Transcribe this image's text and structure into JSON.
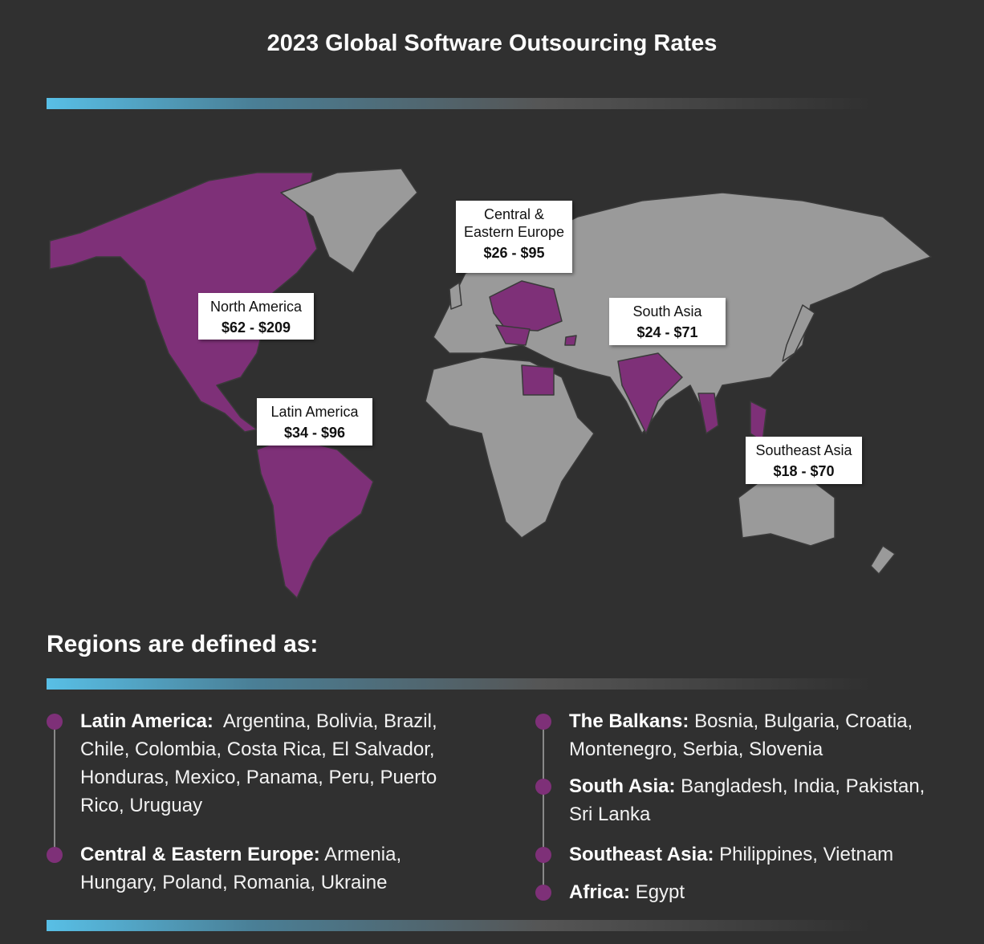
{
  "title": "2023 Global Software Outsourcing Rates",
  "map": {
    "callouts": [
      {
        "region": "Central & Eastern Europe",
        "rate": "$26 - $95"
      },
      {
        "region": "North America",
        "rate": "$62 - $209"
      },
      {
        "region": "South Asia",
        "rate": "$24 - $71"
      },
      {
        "region": "Latin America",
        "rate": "$34 - $96"
      },
      {
        "region": "Southeast Asia",
        "rate": "$18 - $70"
      }
    ]
  },
  "regions": {
    "heading": "Regions are defined as:",
    "items": [
      {
        "name": "Latin America:",
        "countries": "Argentina, Bolivia, Brazil, Chile, Colombia, Costa Rica, El Salvador, Honduras, Mexico, Panama, Peru, Puerto Rico, Uruguay"
      },
      {
        "name": "Central & Eastern Europe:",
        "countries": "Armenia, Hungary, Poland, Romania, Ukraine"
      },
      {
        "name": "The Balkans:",
        "countries": "Bosnia, Bulgaria, Croatia, Montenegro, Serbia, Slovenia"
      },
      {
        "name": "South Asia:",
        "countries": "Bangladesh, India, Pakistan, Sri Lanka"
      },
      {
        "name": "Southeast Asia:",
        "countries": "Philippines, Vietnam"
      },
      {
        "name": "Africa:",
        "countries": "Egypt"
      }
    ]
  }
}
